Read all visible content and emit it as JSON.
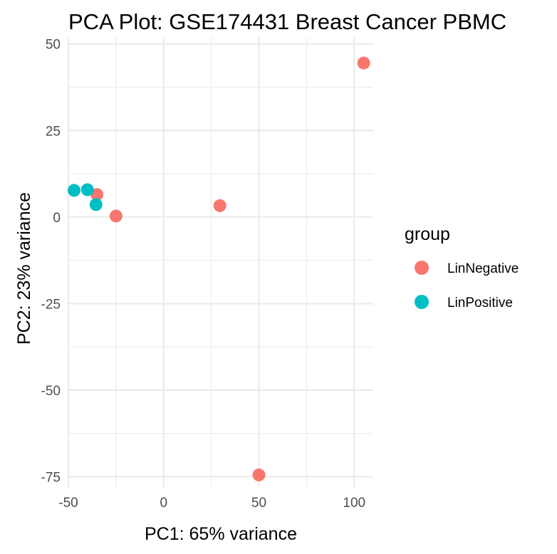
{
  "chart_data": {
    "type": "scatter",
    "title": "PCA Plot: GSE174431 Breast Cancer PBMC",
    "xlabel": "PC1: 65% variance",
    "ylabel": "PC2: 23% variance",
    "xlim": [
      -50,
      110
    ],
    "ylim": [
      -78,
      52
    ],
    "x_ticks": [
      -50,
      0,
      50,
      100
    ],
    "y_ticks": [
      50,
      25,
      0,
      -25,
      -50,
      -75
    ],
    "x_tick_labels": [
      "-50",
      "0",
      "50",
      "100"
    ],
    "y_tick_labels": [
      "50",
      "25",
      "0",
      "-25",
      "-50",
      "-75"
    ],
    "grid": true,
    "legend_title": "group",
    "legend_position": "right",
    "series": [
      {
        "name": "LinNegative",
        "color": "#F8766D",
        "points": [
          {
            "x": 105,
            "y": 44.5
          },
          {
            "x": -35,
            "y": 6.5
          },
          {
            "x": -25,
            "y": 0.3
          },
          {
            "x": 29.5,
            "y": 3.3
          },
          {
            "x": 50,
            "y": -74.5
          }
        ]
      },
      {
        "name": "LinPositive",
        "color": "#00BFC4",
        "points": [
          {
            "x": -47,
            "y": 7.7
          },
          {
            "x": -40,
            "y": 7.9
          },
          {
            "x": -35.5,
            "y": 3.6
          }
        ]
      }
    ]
  }
}
